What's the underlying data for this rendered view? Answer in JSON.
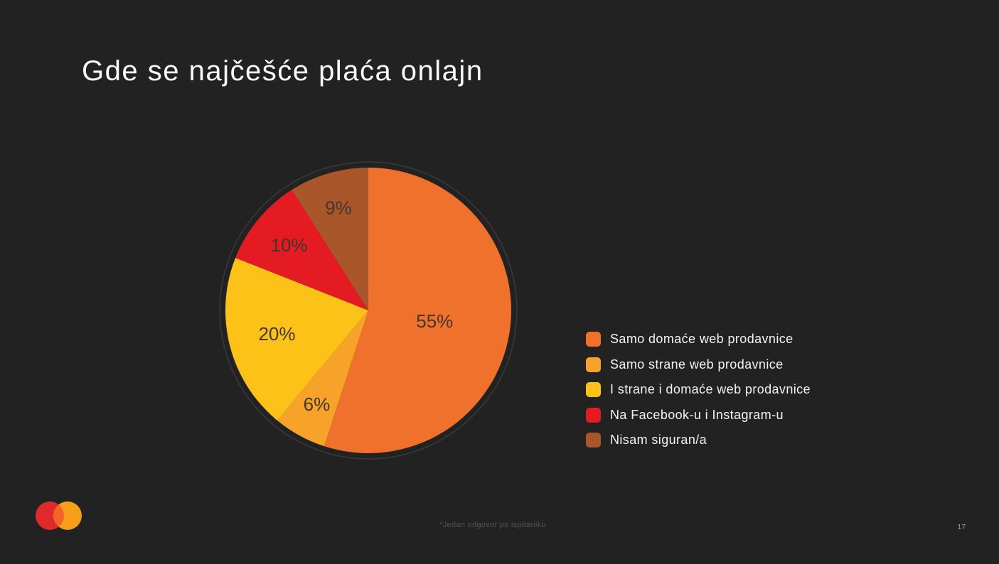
{
  "slide": {
    "title": "Gde se najčešće plaća onlajn",
    "footnote": "*Jedan odgovor po ispitaniku",
    "page_number": "17"
  },
  "chart_data": {
    "type": "pie",
    "unit": "%",
    "start_angle_deg": 0,
    "direction": "clockwise",
    "legend_position": "right",
    "data_label_color": "#43372C",
    "ring_color": "#3A3A3A",
    "slices": [
      {
        "label": "Samo domaće web prodavnice",
        "value": 55,
        "display": "55%",
        "color": "#F0712B",
        "label_radius": 0.47
      },
      {
        "label": "Samo strane web prodavnice",
        "value": 6,
        "display": "6%",
        "color": "#F7A229",
        "label_radius": 0.75
      },
      {
        "label": "I strane i domaće web prodavnice",
        "value": 20,
        "display": "20%",
        "color": "#FCC217",
        "label_radius": 0.66
      },
      {
        "label": "Na Facebook-u i Instagram-u",
        "value": 10,
        "display": "10%",
        "color": "#E51B24",
        "label_radius": 0.72
      },
      {
        "label": "Nisam siguran/a",
        "value": 9,
        "display": "9%",
        "color": "#A9562B",
        "label_radius": 0.75
      }
    ]
  },
  "logo": {
    "name": "mastercard-logo",
    "left_circle_color": "#DE2A2B",
    "right_circle_color": "#F79E1B",
    "overlap_color": "#F4632A"
  },
  "theme": {
    "background": "#232222",
    "title_color": "#FAFAFA",
    "legend_text_color": "#F5F3F0"
  }
}
